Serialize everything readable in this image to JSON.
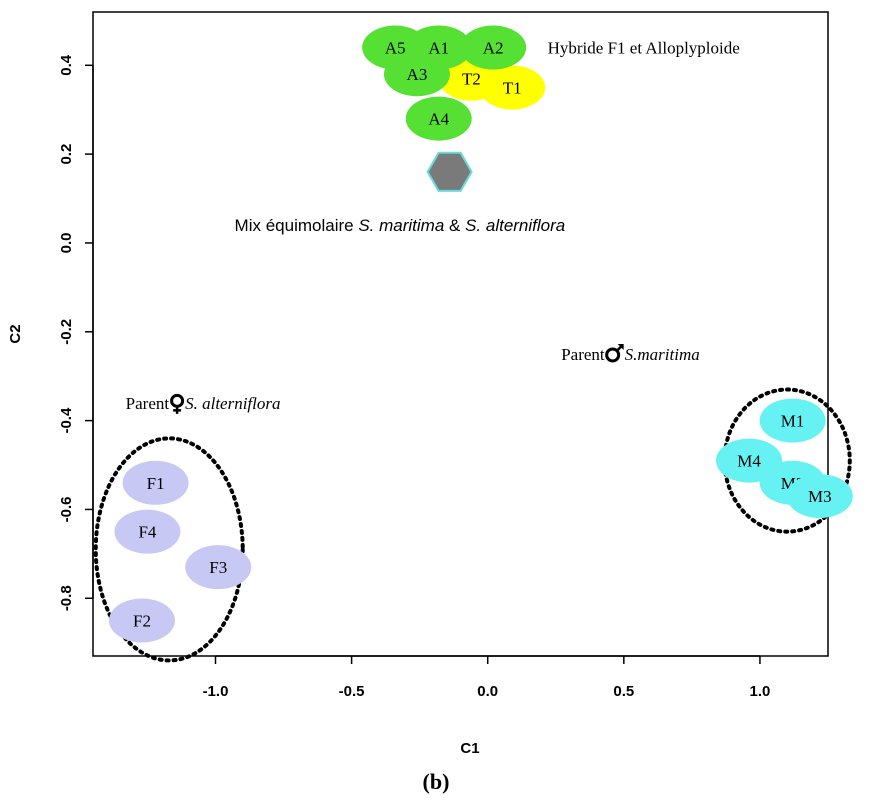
{
  "chart_data": {
    "type": "scatter",
    "xlabel": "C1",
    "ylabel": "C2",
    "xlim": [
      -1.45,
      1.25
    ],
    "ylim": [
      -0.93,
      0.52
    ],
    "x_ticks": [
      -1.0,
      -0.5,
      0.0,
      0.5,
      1.0
    ],
    "x_tick_labels": [
      "-1.0",
      "-0.5",
      "0.0",
      "0.5",
      "1.0"
    ],
    "y_ticks": [
      -0.8,
      -0.6,
      -0.4,
      -0.2,
      0.0,
      0.2,
      0.4
    ],
    "y_tick_labels": [
      "-0.8",
      "-0.6",
      "-0.4",
      "-0.2",
      "0.0",
      "0.2",
      "0.4"
    ],
    "grid": false,
    "points": [
      {
        "label": "T2",
        "x": -0.06,
        "y": 0.37,
        "color": "#ffff00"
      },
      {
        "label": "T1",
        "x": 0.09,
        "y": 0.35,
        "color": "#ffff00"
      },
      {
        "label": "A5",
        "x": -0.34,
        "y": 0.44,
        "color": "#55e033"
      },
      {
        "label": "A1",
        "x": -0.18,
        "y": 0.44,
        "color": "#55e033"
      },
      {
        "label": "A2",
        "x": 0.02,
        "y": 0.44,
        "color": "#55e033"
      },
      {
        "label": "A3",
        "x": -0.26,
        "y": 0.38,
        "color": "#55e033"
      },
      {
        "label": "A4",
        "x": -0.18,
        "y": 0.28,
        "color": "#55e033"
      },
      {
        "label": "F1",
        "x": -1.22,
        "y": -0.54,
        "color": "#c8c8f4"
      },
      {
        "label": "F4",
        "x": -1.25,
        "y": -0.65,
        "color": "#c8c8f4"
      },
      {
        "label": "F3",
        "x": -0.99,
        "y": -0.73,
        "color": "#c8c8f4"
      },
      {
        "label": "F2",
        "x": -1.27,
        "y": -0.85,
        "color": "#c8c8f4"
      },
      {
        "label": "M1",
        "x": 1.12,
        "y": -0.4,
        "color": "#66f2f2"
      },
      {
        "label": "M4",
        "x": 0.96,
        "y": -0.49,
        "color": "#66f2f2"
      },
      {
        "label": "M2",
        "x": 1.12,
        "y": -0.54,
        "color": "#66f2f2"
      },
      {
        "label": "M3",
        "x": 1.22,
        "y": -0.57,
        "color": "#66f2f2"
      }
    ],
    "mix_marker": {
      "shape": "hexagon",
      "x": -0.14,
      "y": 0.16,
      "fill": "#7a7a7a",
      "stroke": "#66dddd"
    },
    "group_ellipses": [
      {
        "group": "F",
        "cx": -1.17,
        "cy": -0.69,
        "rx": 0.27,
        "ry": 0.25
      },
      {
        "group": "M",
        "cx": 1.1,
        "cy": -0.49,
        "rx": 0.23,
        "ry": 0.16
      }
    ],
    "annotations": {
      "hybrid": {
        "text": "Hybride F1 et Alloplyploide",
        "x": 0.22,
        "y": 0.44
      },
      "mix": {
        "prefix": "Mix équimolaire ",
        "sp1": "S. maritima",
        "amp": " & ",
        "sp2": "S. alterniflora",
        "x": -0.93,
        "y": 0.04
      },
      "parent_male": {
        "prefix": "Parent",
        "symbol": "male",
        "species": "S.maritima",
        "x": 0.27,
        "y": -0.25
      },
      "parent_female": {
        "prefix": "Parent",
        "symbol": "female",
        "species": "S. alterniflora",
        "x": -1.33,
        "y": -0.36
      }
    }
  },
  "panel_label": "(b)"
}
